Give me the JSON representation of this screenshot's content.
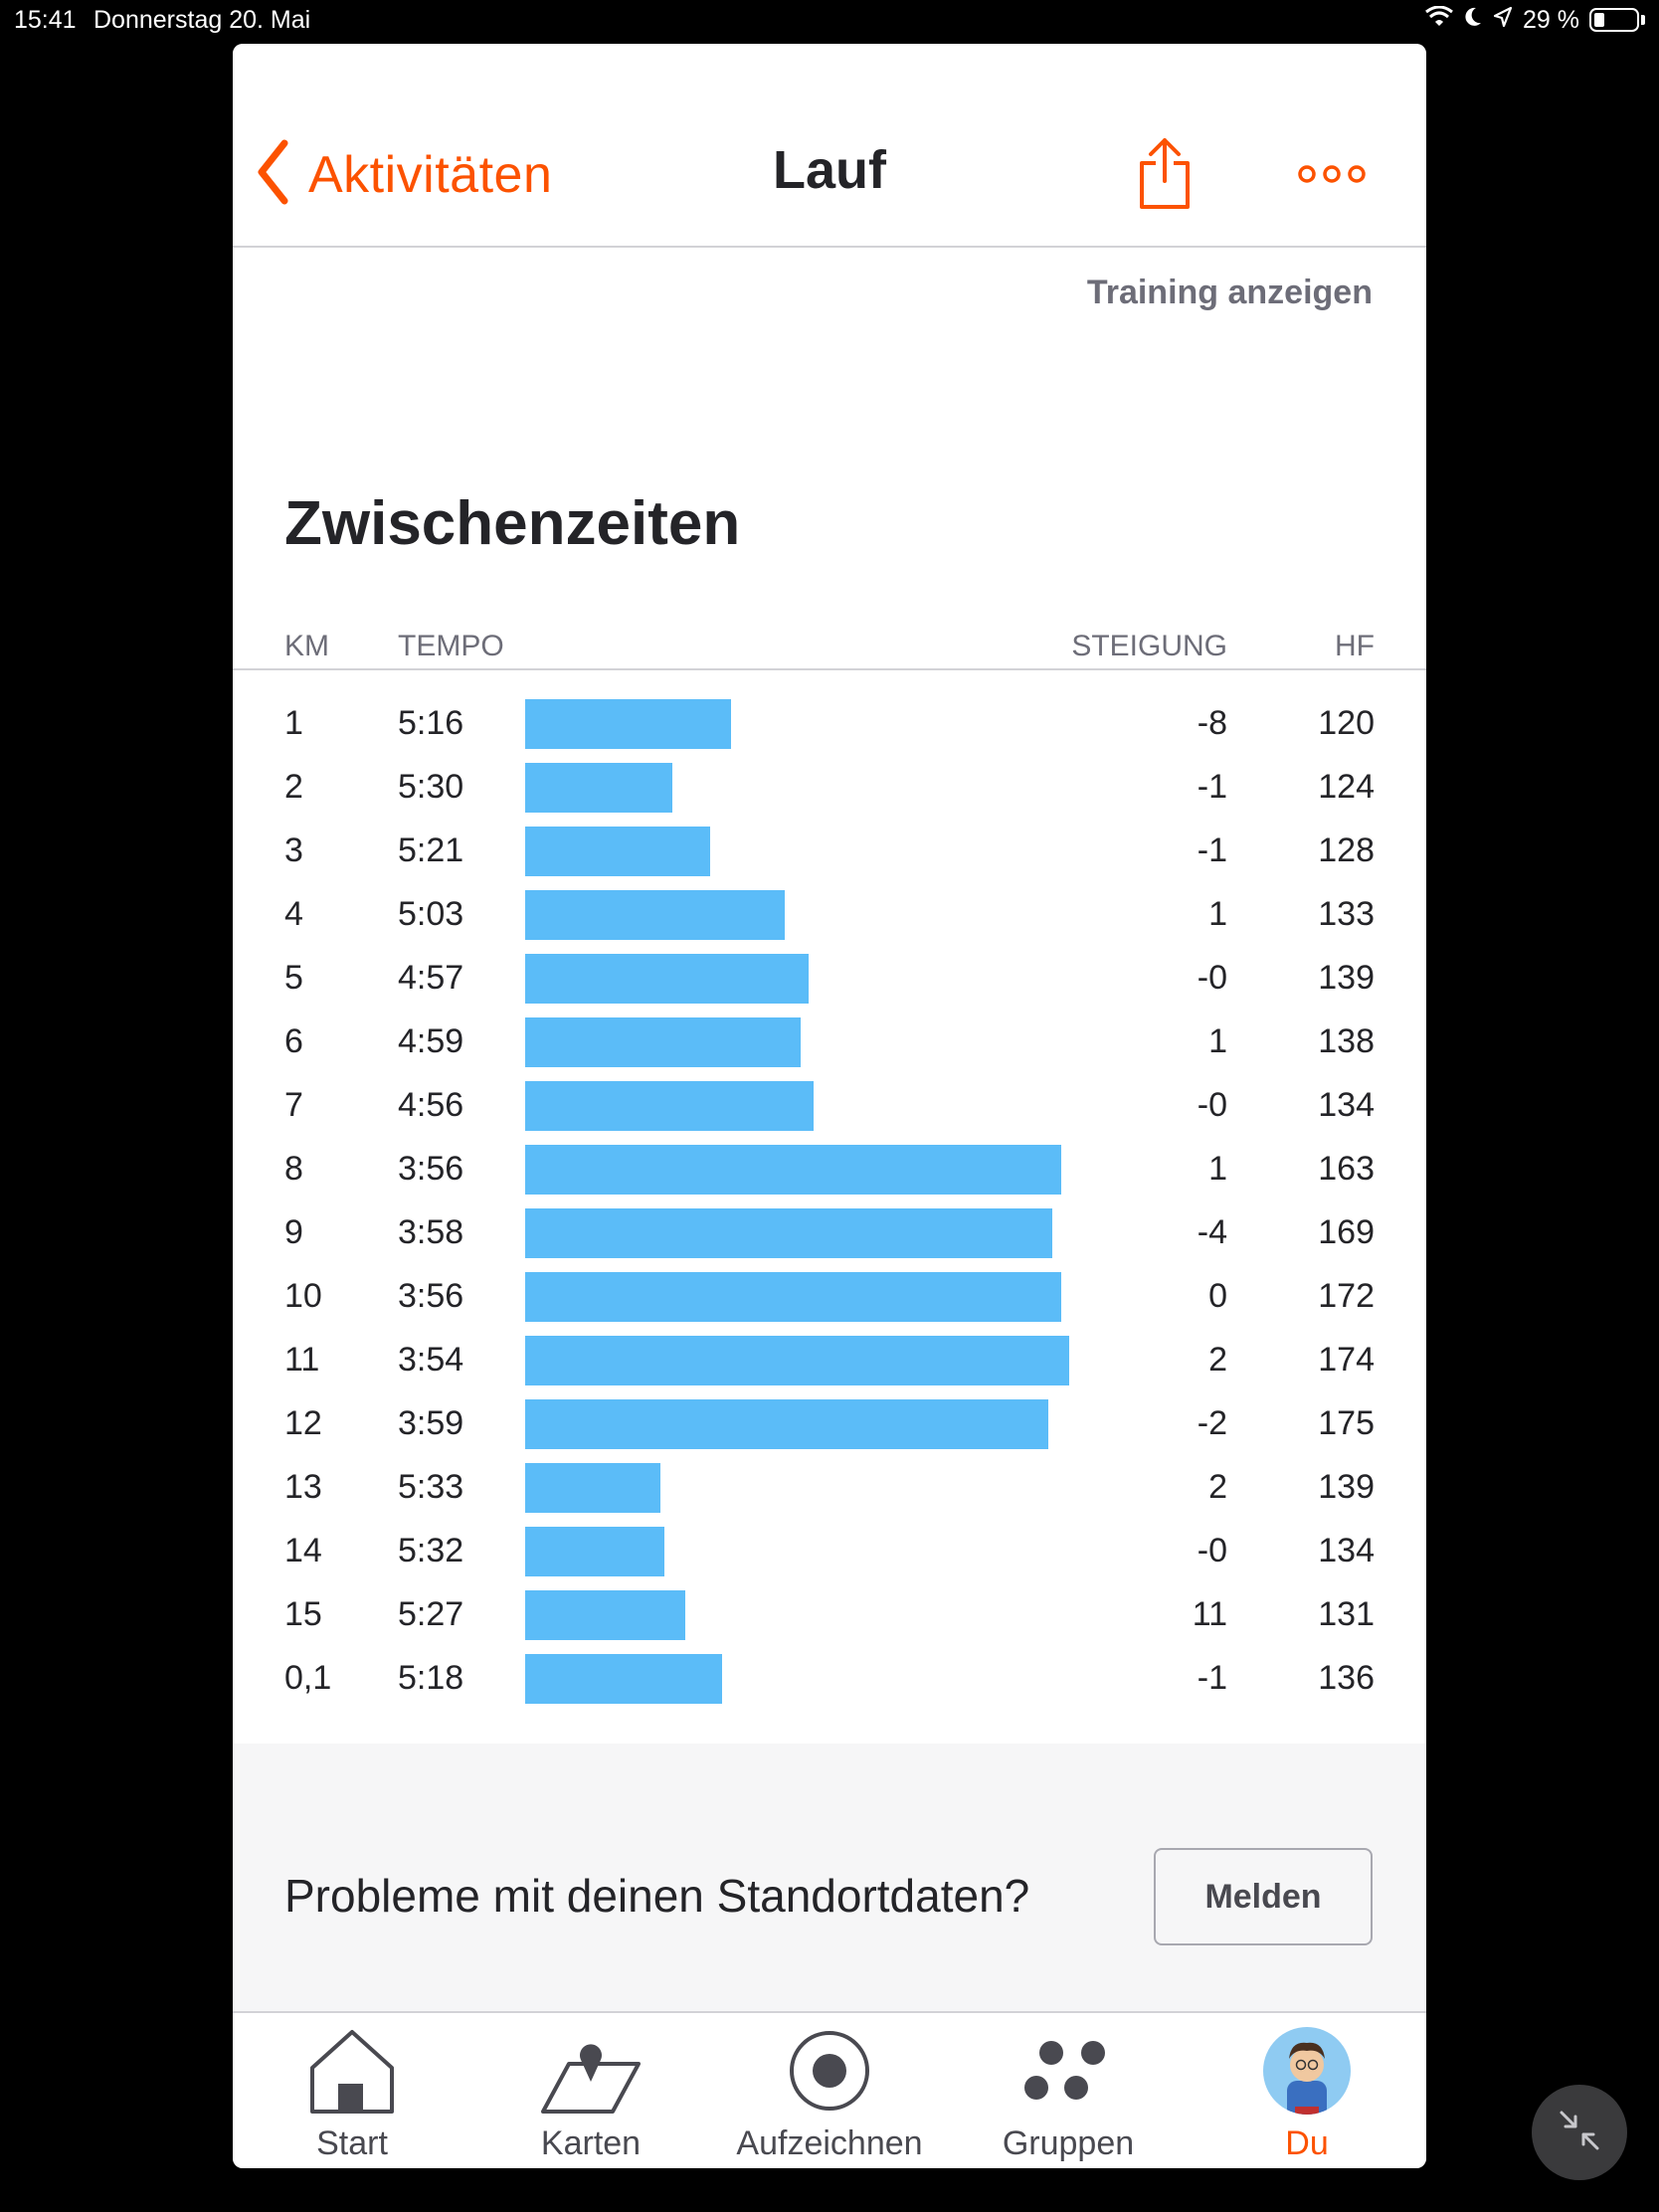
{
  "status_bar": {
    "time": "15:41",
    "date": "Donnerstag 20. Mai",
    "battery": "29 %"
  },
  "nav": {
    "back_label": "Aktivitäten",
    "title": "Lauf",
    "training_link": "Training anzeigen"
  },
  "splits": {
    "title": "Zwischenzeiten",
    "headers": {
      "km": "KM",
      "tempo": "TEMPO",
      "steigung": "STEIGUNG",
      "hf": "HF"
    },
    "rows": [
      {
        "km": "1",
        "tempo": "5:16",
        "steigung": "-8",
        "hf": "120"
      },
      {
        "km": "2",
        "tempo": "5:30",
        "steigung": "-1",
        "hf": "124"
      },
      {
        "km": "3",
        "tempo": "5:21",
        "steigung": "-1",
        "hf": "128"
      },
      {
        "km": "4",
        "tempo": "5:03",
        "steigung": "1",
        "hf": "133"
      },
      {
        "km": "5",
        "tempo": "4:57",
        "steigung": "-0",
        "hf": "139"
      },
      {
        "km": "6",
        "tempo": "4:59",
        "steigung": "1",
        "hf": "138"
      },
      {
        "km": "7",
        "tempo": "4:56",
        "steigung": "-0",
        "hf": "134"
      },
      {
        "km": "8",
        "tempo": "3:56",
        "steigung": "1",
        "hf": "163"
      },
      {
        "km": "9",
        "tempo": "3:58",
        "steigung": "-4",
        "hf": "169"
      },
      {
        "km": "10",
        "tempo": "3:56",
        "steigung": "0",
        "hf": "172"
      },
      {
        "km": "11",
        "tempo": "3:54",
        "steigung": "2",
        "hf": "174"
      },
      {
        "km": "12",
        "tempo": "3:59",
        "steigung": "-2",
        "hf": "175"
      },
      {
        "km": "13",
        "tempo": "5:33",
        "steigung": "2",
        "hf": "139"
      },
      {
        "km": "14",
        "tempo": "5:32",
        "steigung": "-0",
        "hf": "134"
      },
      {
        "km": "15",
        "tempo": "5:27",
        "steigung": "11",
        "hf": "131"
      },
      {
        "km": "0,1",
        "tempo": "5:18",
        "steigung": "-1",
        "hf": "136"
      }
    ]
  },
  "report": {
    "question": "Probleme mit deinen Standortdaten?",
    "button": "Melden"
  },
  "tabs": [
    {
      "label": "Start",
      "icon": "home-icon"
    },
    {
      "label": "Karten",
      "icon": "map-icon"
    },
    {
      "label": "Aufzeichnen",
      "icon": "record-icon"
    },
    {
      "label": "Gruppen",
      "icon": "groups-icon"
    },
    {
      "label": "Du",
      "icon": "profile-avatar"
    }
  ],
  "colors": {
    "accent": "#fc5200",
    "bar": "#5bbcf8"
  }
}
